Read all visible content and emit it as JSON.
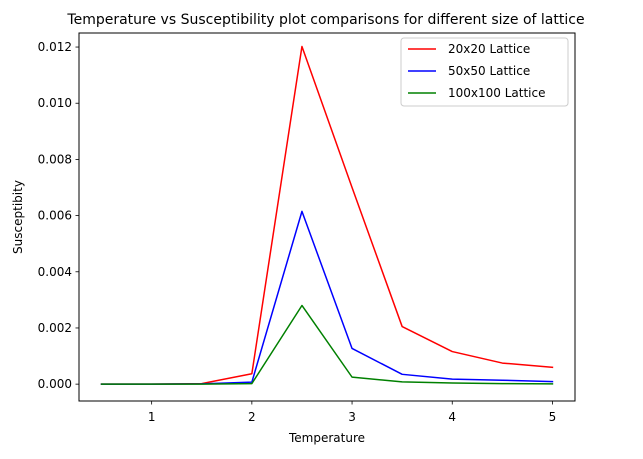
{
  "chart_data": {
    "type": "line",
    "title": "Temperature vs Susceptibility plot comparisons for different size of lattice",
    "xlabel": "Temperature",
    "ylabel": "Susceptibity",
    "xlim": [
      0.275,
      5.225
    ],
    "ylim": [
      -0.0006,
      0.0125
    ],
    "xticks": [
      1,
      2,
      3,
      4,
      5
    ],
    "xtick_labels": [
      "1",
      "2",
      "3",
      "4",
      "5"
    ],
    "yticks": [
      0.0,
      0.002,
      0.004,
      0.006,
      0.008,
      0.01,
      0.012
    ],
    "ytick_labels": [
      "0.000",
      "0.002",
      "0.004",
      "0.006",
      "0.008",
      "0.010",
      "0.012"
    ],
    "grid": false,
    "legend_position": "top-right",
    "x": [
      0.5,
      1.0,
      1.5,
      2.0,
      2.5,
      3.0,
      3.5,
      4.0,
      4.5,
      5.0
    ],
    "series": [
      {
        "name": "20x20 Lattice",
        "color": "#ff0000",
        "values": [
          0.0,
          0.0,
          2e-05,
          0.00037,
          0.01202,
          0.007,
          0.00205,
          0.00116,
          0.00075,
          0.0006
        ]
      },
      {
        "name": "50x50 Lattice",
        "color": "#0000ff",
        "values": [
          0.0,
          0.0,
          1e-05,
          7e-05,
          0.00615,
          0.00127,
          0.00035,
          0.00018,
          0.00014,
          9e-05
        ]
      },
      {
        "name": "100x100 Lattice",
        "color": "#008000",
        "values": [
          0.0,
          0.0,
          0.0,
          2e-05,
          0.0028,
          0.00025,
          8e-05,
          4e-05,
          2e-05,
          1e-05
        ]
      }
    ]
  }
}
